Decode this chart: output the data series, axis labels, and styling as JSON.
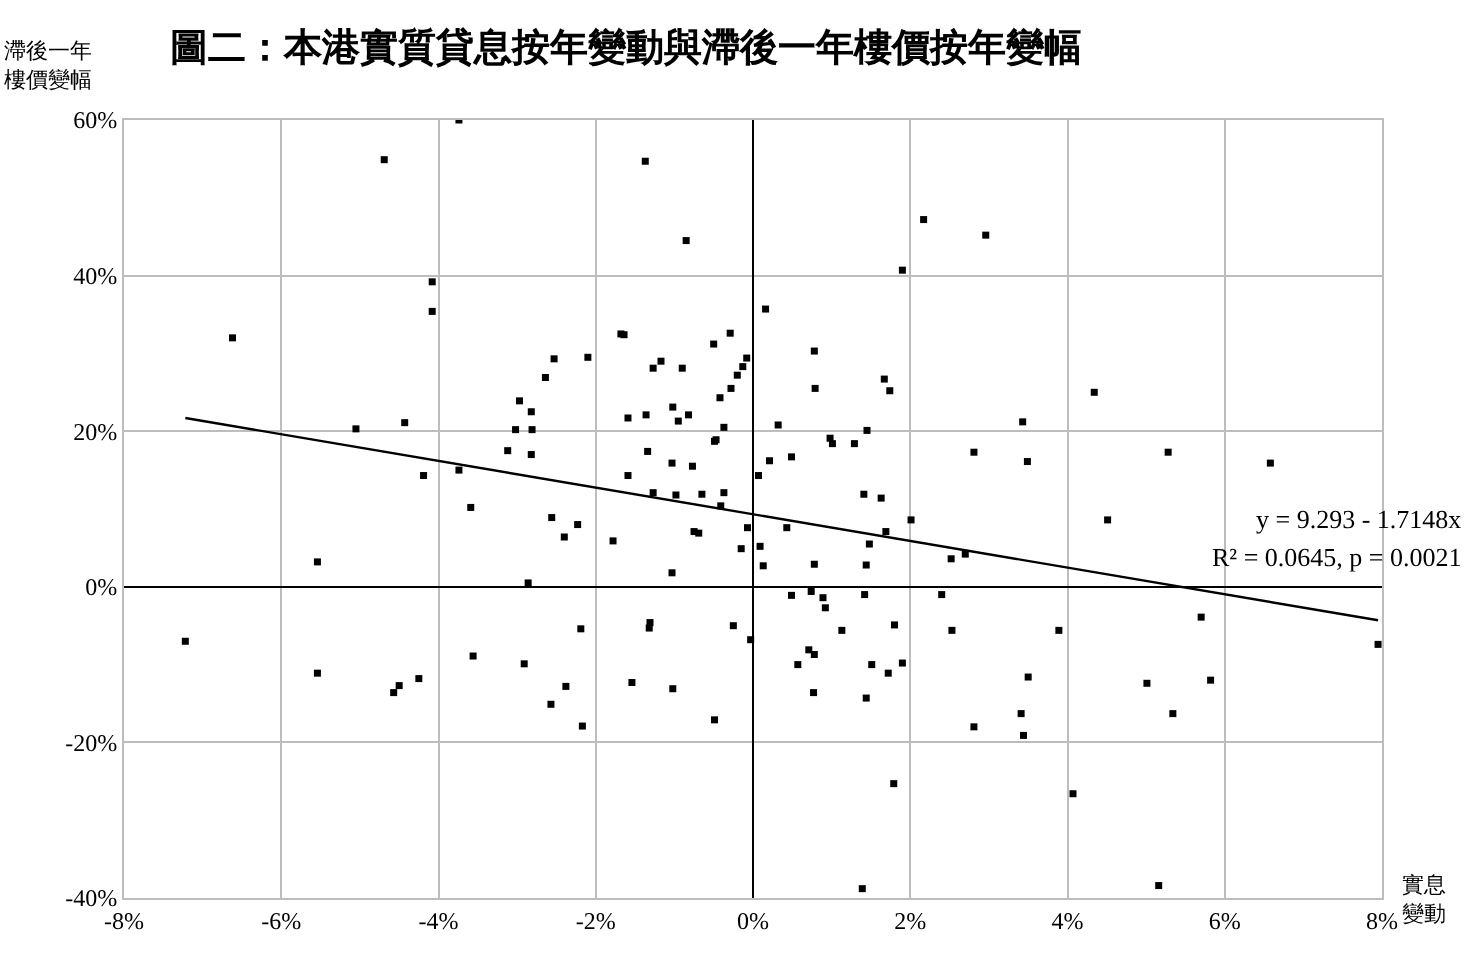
{
  "chart_data": {
    "type": "scatter",
    "title": "圖二：本港實質貸息按年變動與滯後一年樓價按年變幅",
    "xlabel": "實息變動",
    "ylabel": "滯後一年樓價變幅",
    "annotations": [
      "y = 9.293 - 1.7148x",
      "R² = 0.0645, p = 0.0021"
    ],
    "xlim": [
      -8,
      8
    ],
    "xticks": [
      {
        "value": -8,
        "label": "-8%"
      },
      {
        "value": -6,
        "label": "-6%"
      },
      {
        "value": -4,
        "label": "-4%"
      },
      {
        "value": -2,
        "label": "-2%"
      },
      {
        "value": 0,
        "label": "0%"
      },
      {
        "value": 2,
        "label": "2%"
      },
      {
        "value": 4,
        "label": "4%"
      },
      {
        "value": 6,
        "label": "6%"
      },
      {
        "value": 8,
        "label": "8%"
      }
    ],
    "ylim": [
      -40,
      60
    ],
    "yticks": [
      {
        "value": -40,
        "label": "-40%"
      },
      {
        "value": -20,
        "label": "-20%"
      },
      {
        "value": 0,
        "label": "0%"
      },
      {
        "value": 20,
        "label": "20%"
      },
      {
        "value": 40,
        "label": "40%"
      },
      {
        "value": 60,
        "label": "60%"
      }
    ],
    "grid": true,
    "marker": "square",
    "series": [
      {
        "color": "#000000",
        "x": [
          -3.74,
          -4.69,
          -4.08,
          -4.08,
          -6.62,
          -2.53,
          -2.64,
          -2.97,
          -2.82,
          -3.02,
          -2.81,
          -5.05,
          -4.43,
          -3.12,
          -2.82,
          -4.19,
          -3.74,
          -3.59,
          -2.56,
          -1.37,
          -0.85,
          2.17,
          1.9,
          0.16,
          -1.68,
          -1.64,
          -0.29,
          -2.1,
          -0.5,
          -0.08,
          -0.13,
          -0.2,
          -0.28,
          -0.42,
          -1.27,
          -1.17,
          -0.9,
          0.78,
          0.79,
          1.67,
          1.74,
          -1.59,
          -1.36,
          -1.02,
          -0.82,
          -0.95,
          -0.37,
          0.32,
          -0.49,
          -0.47,
          0.98,
          1.01,
          1.29,
          1.45,
          2.81,
          -1.34,
          -1.03,
          -0.77,
          -1.59,
          0.21,
          0.49,
          0.07,
          -1.27,
          -0.98,
          -0.65,
          -0.37,
          -0.41,
          1.41,
          1.63,
          2.01,
          2.96,
          4.34,
          3.43,
          3.49,
          5.28,
          6.58,
          -5.54,
          -2.86,
          -7.22,
          -5.54,
          -4.25,
          -4.5,
          -4.57,
          -3.56,
          -2.91,
          -2.57,
          -2.23,
          -2.4,
          -1.78,
          -0.75,
          -0.69,
          -0.07,
          -0.15,
          0.09,
          0.13,
          -1.03,
          0.43,
          1.69,
          1.48,
          0.78,
          1.44,
          2.52,
          2.7,
          0.49,
          0.74,
          0.89,
          0.92,
          1.42,
          2.4,
          -2.19,
          -1.31,
          -1.32,
          -0.25,
          -0.03,
          1.13,
          1.8,
          2.53,
          0.71,
          0.78,
          0.57,
          1.51,
          1.9,
          1.72,
          0.77,
          1.44,
          -2.38,
          -2.17,
          -1.54,
          -1.02,
          -0.49,
          2.81,
          1.79,
          1.39,
          4.51,
          3.89,
          3.5,
          3.41,
          3.44,
          5.7,
          5.82,
          5.01,
          5.34,
          4.07,
          5.16,
          7.95
        ],
        "values": [
          60,
          54.9,
          39.2,
          35.4,
          32.0,
          29.3,
          26.9,
          23.9,
          22.5,
          20.2,
          20.2,
          20.3,
          21.1,
          17.5,
          17.0,
          14.3,
          15.0,
          10.2,
          8.9,
          54.7,
          44.5,
          47.2,
          40.7,
          35.7,
          32.5,
          32.4,
          32.6,
          29.5,
          31.2,
          29.4,
          28.3,
          27.2,
          25.5,
          24.3,
          28.1,
          29.0,
          28.1,
          30.3,
          25.5,
          26.7,
          25.2,
          21.7,
          22.1,
          23.1,
          22.1,
          21.3,
          20.5,
          20.8,
          18.7,
          18.9,
          19.1,
          18.4,
          18.4,
          20.1,
          17.3,
          17.4,
          15.9,
          15.5,
          14.3,
          16.2,
          16.7,
          14.3,
          12.1,
          11.8,
          11.9,
          12.1,
          10.4,
          11.9,
          11.4,
          8.6,
          45.2,
          25.0,
          21.2,
          16.1,
          17.3,
          15.9,
          3.2,
          0.5,
          -7.0,
          -11.1,
          -11.8,
          -12.7,
          -13.6,
          -8.9,
          -9.9,
          -15.1,
          8.0,
          6.4,
          5.9,
          7.1,
          6.9,
          7.6,
          4.9,
          5.2,
          2.7,
          1.8,
          7.6,
          7.1,
          5.5,
          2.9,
          2.8,
          3.6,
          4.2,
          -1.1,
          -0.6,
          -1.4,
          -2.7,
          -1.0,
          -1.0,
          -5.4,
          -4.6,
          -5.3,
          -5.0,
          -6.8,
          -5.6,
          -4.9,
          -5.6,
          -8.1,
          -8.7,
          -10.0,
          -10.0,
          -9.8,
          -11.1,
          -13.6,
          -14.3,
          -12.8,
          -17.9,
          -12.3,
          -13.1,
          -17.1,
          -18.0,
          -25.3,
          -38.8,
          8.6,
          -5.6,
          -11.6,
          -16.3,
          -19.1,
          -3.9,
          -12.0,
          -12.4,
          -16.3,
          -26.6,
          -38.4,
          -7.4
        ]
      },
      {
        "type": "line",
        "marker": "none",
        "color": "#000000",
        "x": [
          -7.22,
          7.95
        ],
        "values": [
          21.7,
          -4.3
        ]
      }
    ]
  }
}
